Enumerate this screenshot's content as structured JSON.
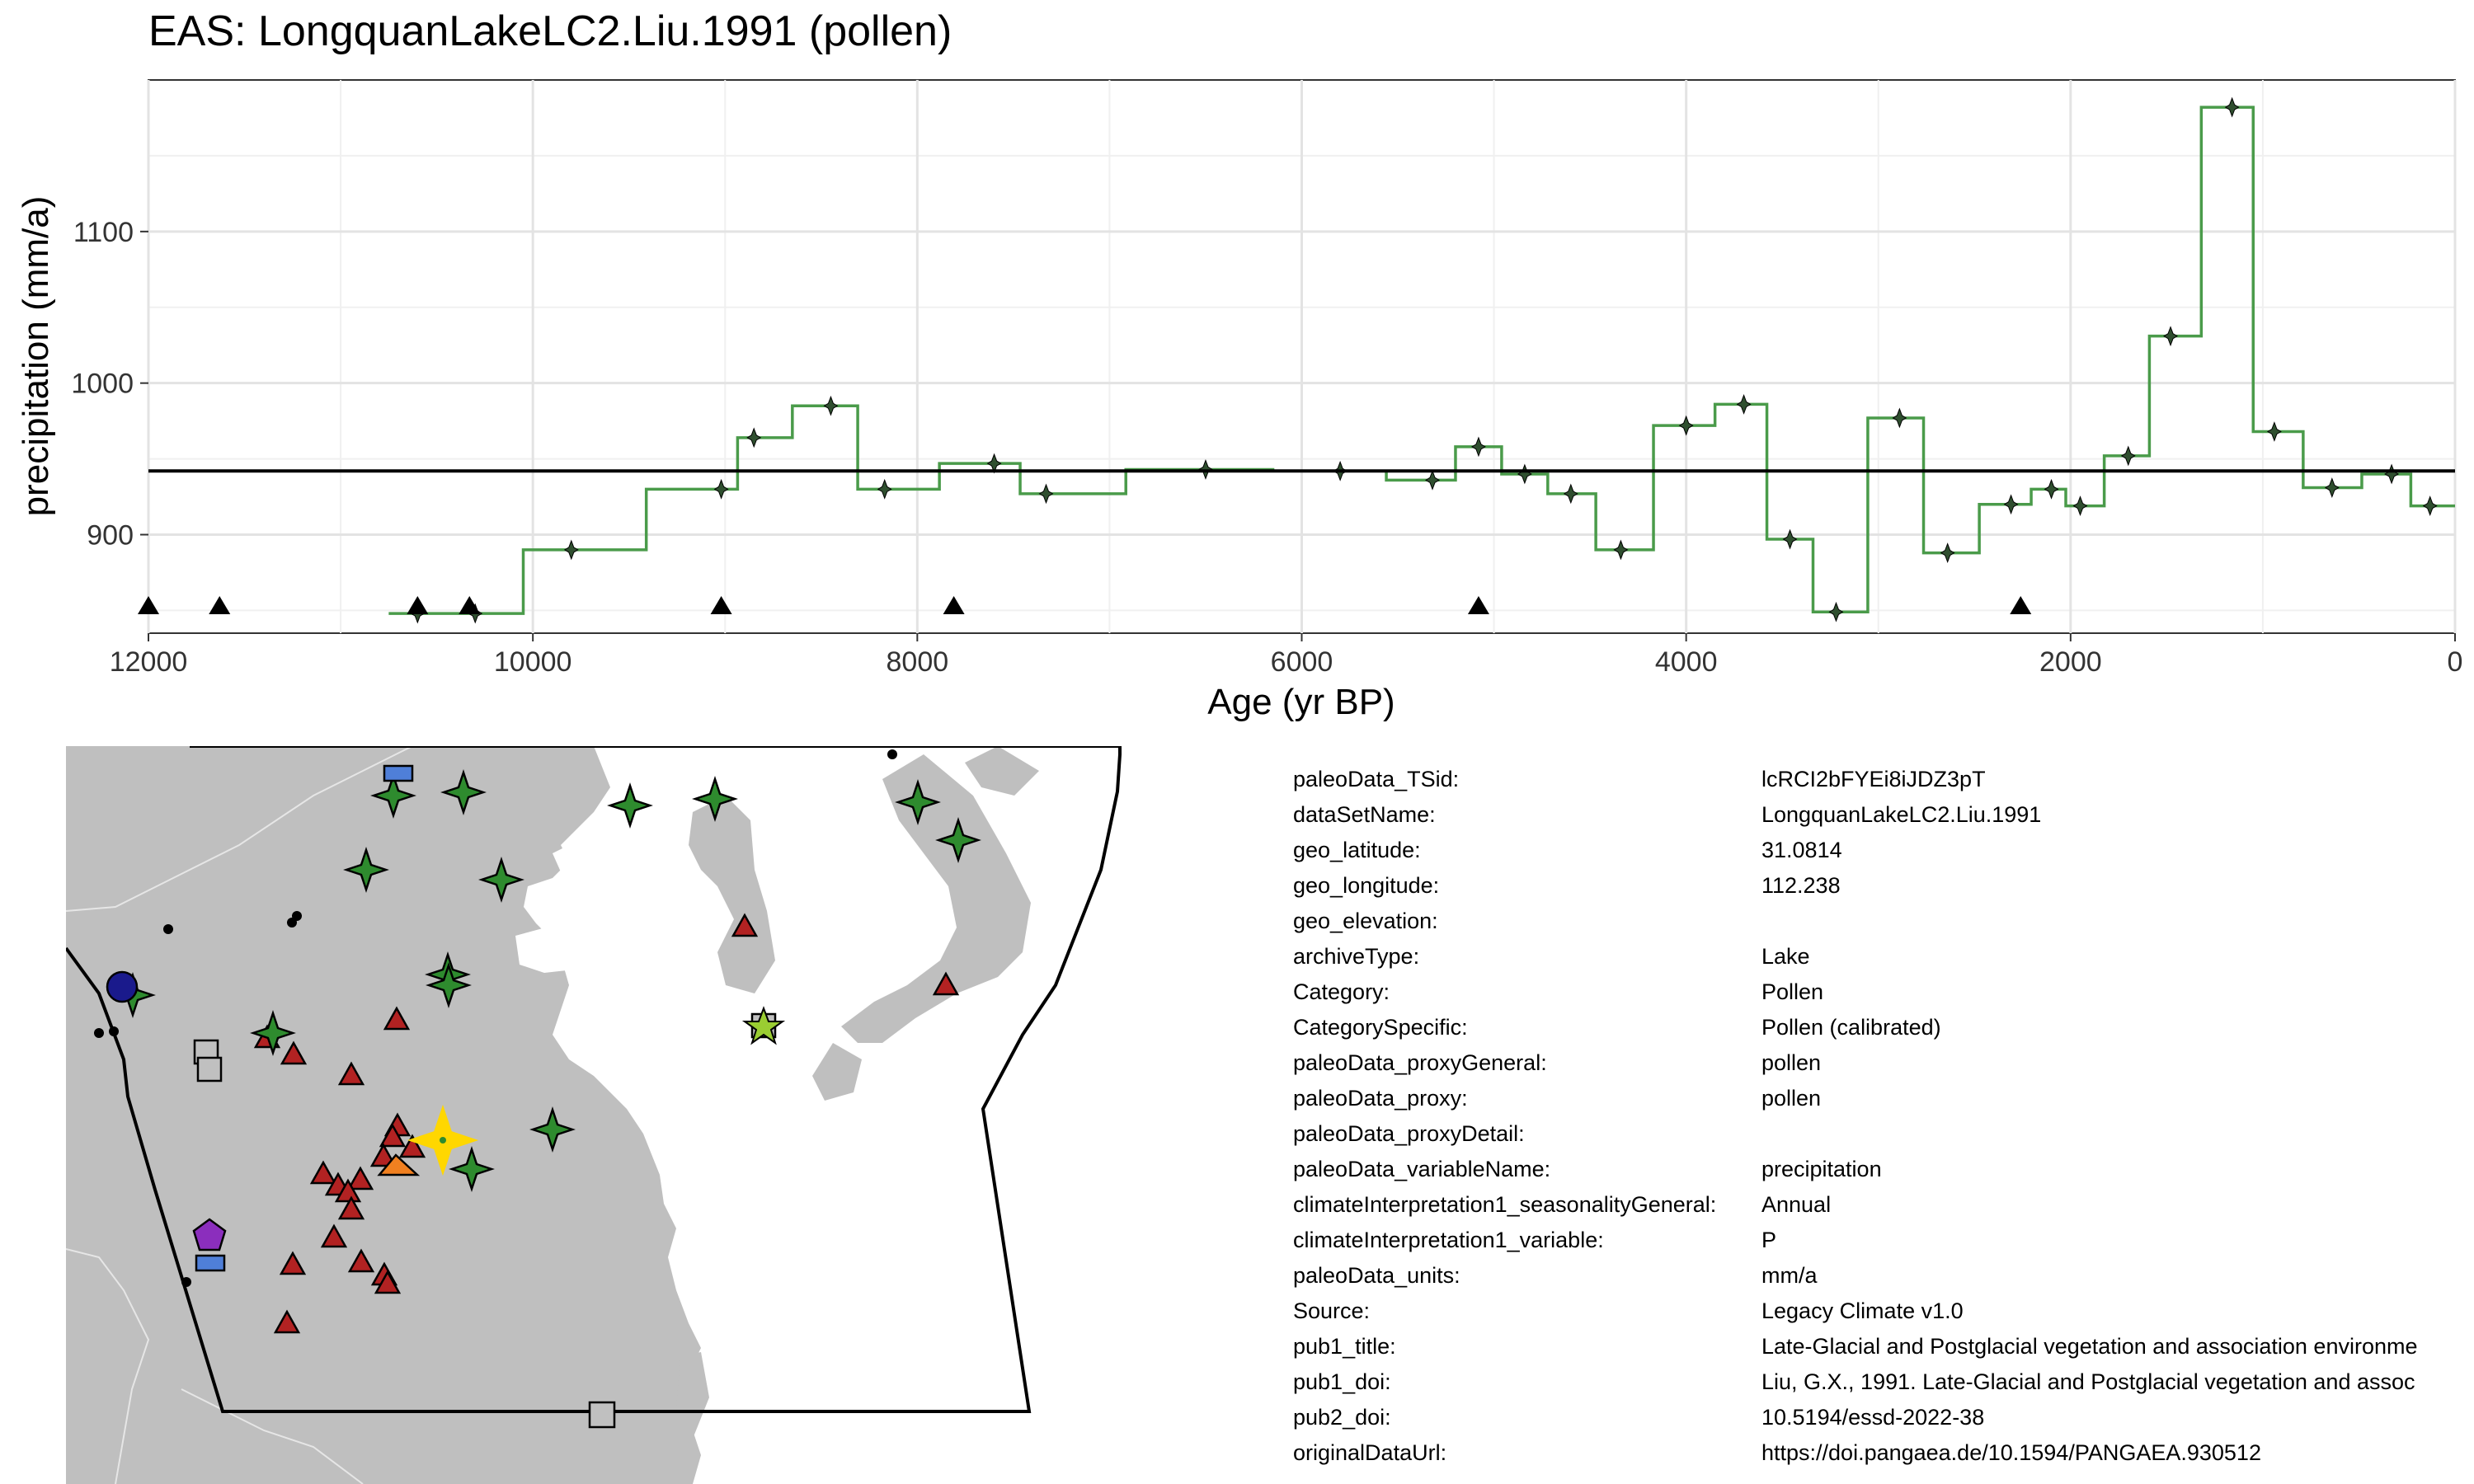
{
  "chart_data": {
    "type": "line",
    "title": "EAS: LongquanLakeLC2.Liu.1991 (pollen)",
    "xlabel": "Age (yr BP)",
    "ylabel": "precipitation (mm/a)",
    "xlim": [
      12000,
      0
    ],
    "ylim": [
      835,
      1200
    ],
    "x_reversed": true,
    "x_ticks": [
      12000,
      10000,
      8000,
      6000,
      4000,
      2000,
      0
    ],
    "y_ticks": [
      900,
      1000,
      1100
    ],
    "grid": true,
    "mean_line": 942,
    "series": [
      {
        "color": "#4a9b4a",
        "x": [
          10600,
          10300,
          9800,
          9020,
          8850,
          8450,
          8170,
          7600,
          7330,
          6500,
          5800,
          5320,
          5080,
          4840,
          4600,
          4340,
          4000,
          3700,
          3460,
          3220,
          2890,
          2640,
          2310,
          2100,
          1950,
          1700,
          1480,
          1160,
          940,
          640,
          330,
          130
        ],
        "y": [
          848,
          848,
          890,
          930,
          964,
          985,
          930,
          947,
          927,
          943,
          942,
          936,
          958,
          940,
          927,
          890,
          972,
          986,
          897,
          849,
          977,
          888,
          920,
          930,
          919,
          952,
          1031,
          1182,
          968,
          931,
          940,
          919
        ]
      }
    ],
    "age_markers_x": [
      12000,
      11630,
      10600,
      10330,
      9020,
      7810,
      5080,
      2260
    ]
  },
  "map": {
    "legend_colors": {
      "land": "#bfbfbf",
      "pollen_star": "#2e8b2e",
      "lake_triangle": "#b22222",
      "highlight": "#ffd700",
      "square": "#c0c0c0",
      "rectangle": "#4f7fd8",
      "pentagon": "#8b2ebd",
      "circle": "#1a1a8c",
      "small_star": "#9acd32",
      "orange": "#f08020"
    }
  },
  "meta": [
    {
      "key": "paleoData_TSid:",
      "value": "lcRCI2bFYEi8iJDZ3pT"
    },
    {
      "key": "dataSetName:",
      "value": "LongquanLakeLC2.Liu.1991"
    },
    {
      "key": "geo_latitude:",
      "value": "31.0814"
    },
    {
      "key": "geo_longitude:",
      "value": "112.238"
    },
    {
      "key": "geo_elevation:",
      "value": ""
    },
    {
      "key": "archiveType:",
      "value": "Lake"
    },
    {
      "key": "Category:",
      "value": "Pollen"
    },
    {
      "key": "CategorySpecific:",
      "value": "Pollen (calibrated)"
    },
    {
      "key": "paleoData_proxyGeneral:",
      "value": "pollen"
    },
    {
      "key": "paleoData_proxy:",
      "value": "pollen"
    },
    {
      "key": "paleoData_proxyDetail:",
      "value": ""
    },
    {
      "key": "paleoData_variableName:",
      "value": "precipitation"
    },
    {
      "key": "climateInterpretation1_seasonalityGeneral:",
      "value": "Annual"
    },
    {
      "key": "climateInterpretation1_variable:",
      "value": "P"
    },
    {
      "key": "paleoData_units:",
      "value": "mm/a"
    },
    {
      "key": "Source:",
      "value": "Legacy Climate v1.0"
    },
    {
      "key": "pub1_title:",
      "value": "Late-Glacial and Postglacial vegetation and association environme"
    },
    {
      "key": "pub1_doi:",
      "value": "Liu, G.X., 1991. Late-Glacial and Postglacial vegetation and assoc"
    },
    {
      "key": "pub2_doi:",
      "value": "10.5194/essd-2022-38"
    },
    {
      "key": "originalDataUrl:",
      "value": "https://doi.pangaea.de/10.1594/PANGAEA.930512"
    }
  ]
}
